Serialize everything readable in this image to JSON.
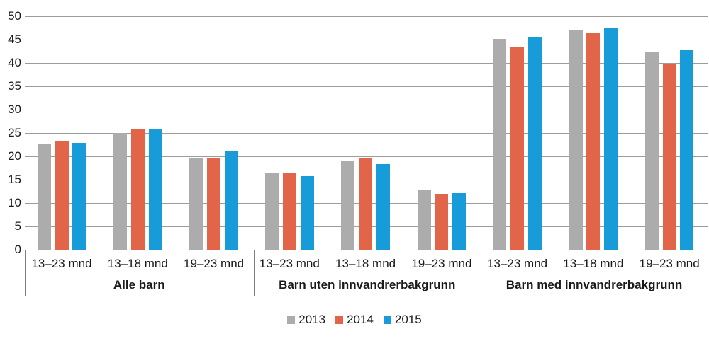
{
  "chart_data": {
    "type": "bar",
    "title": "",
    "xlabel": "",
    "ylabel": "",
    "ylim": [
      0,
      50
    ],
    "ytick_step": 5,
    "yticks": [
      0,
      5,
      10,
      15,
      20,
      25,
      30,
      35,
      40,
      45,
      50
    ],
    "grid": true,
    "legend_position": "bottom",
    "groups": [
      {
        "label": "Alle barn",
        "categories": [
          "13–23 mnd",
          "13–18 mnd",
          "19–23 mnd"
        ]
      },
      {
        "label": "Barn uten innvandrerbakgrunn",
        "categories": [
          "13–23 mnd",
          "13–18 mnd",
          "19–23 mnd"
        ]
      },
      {
        "label": "Barn med innvandrerbakgrunn",
        "categories": [
          "13–23 mnd",
          "13–18 mnd",
          "19–23 mnd"
        ]
      }
    ],
    "series": [
      {
        "name": "2013",
        "color": "#acacac",
        "values": [
          [
            22.6,
            25.0,
            19.5
          ],
          [
            16.4,
            18.9,
            12.7
          ],
          [
            45.1,
            47.1,
            42.5
          ]
        ]
      },
      {
        "name": "2014",
        "color": "#e26449",
        "values": [
          [
            23.3,
            25.9,
            19.6
          ],
          [
            16.4,
            19.6,
            12.0
          ],
          [
            43.5,
            46.4,
            39.9
          ]
        ]
      },
      {
        "name": "2015",
        "color": "#189cd9",
        "values": [
          [
            22.9,
            25.9,
            21.2
          ],
          [
            15.7,
            18.3,
            12.1
          ],
          [
            45.5,
            47.5,
            42.8
          ]
        ]
      }
    ]
  },
  "colors": {
    "gridline": "#9c9c9c",
    "axis_line": "#808080",
    "text": "#1a1a1a",
    "background": "#ffffff"
  }
}
